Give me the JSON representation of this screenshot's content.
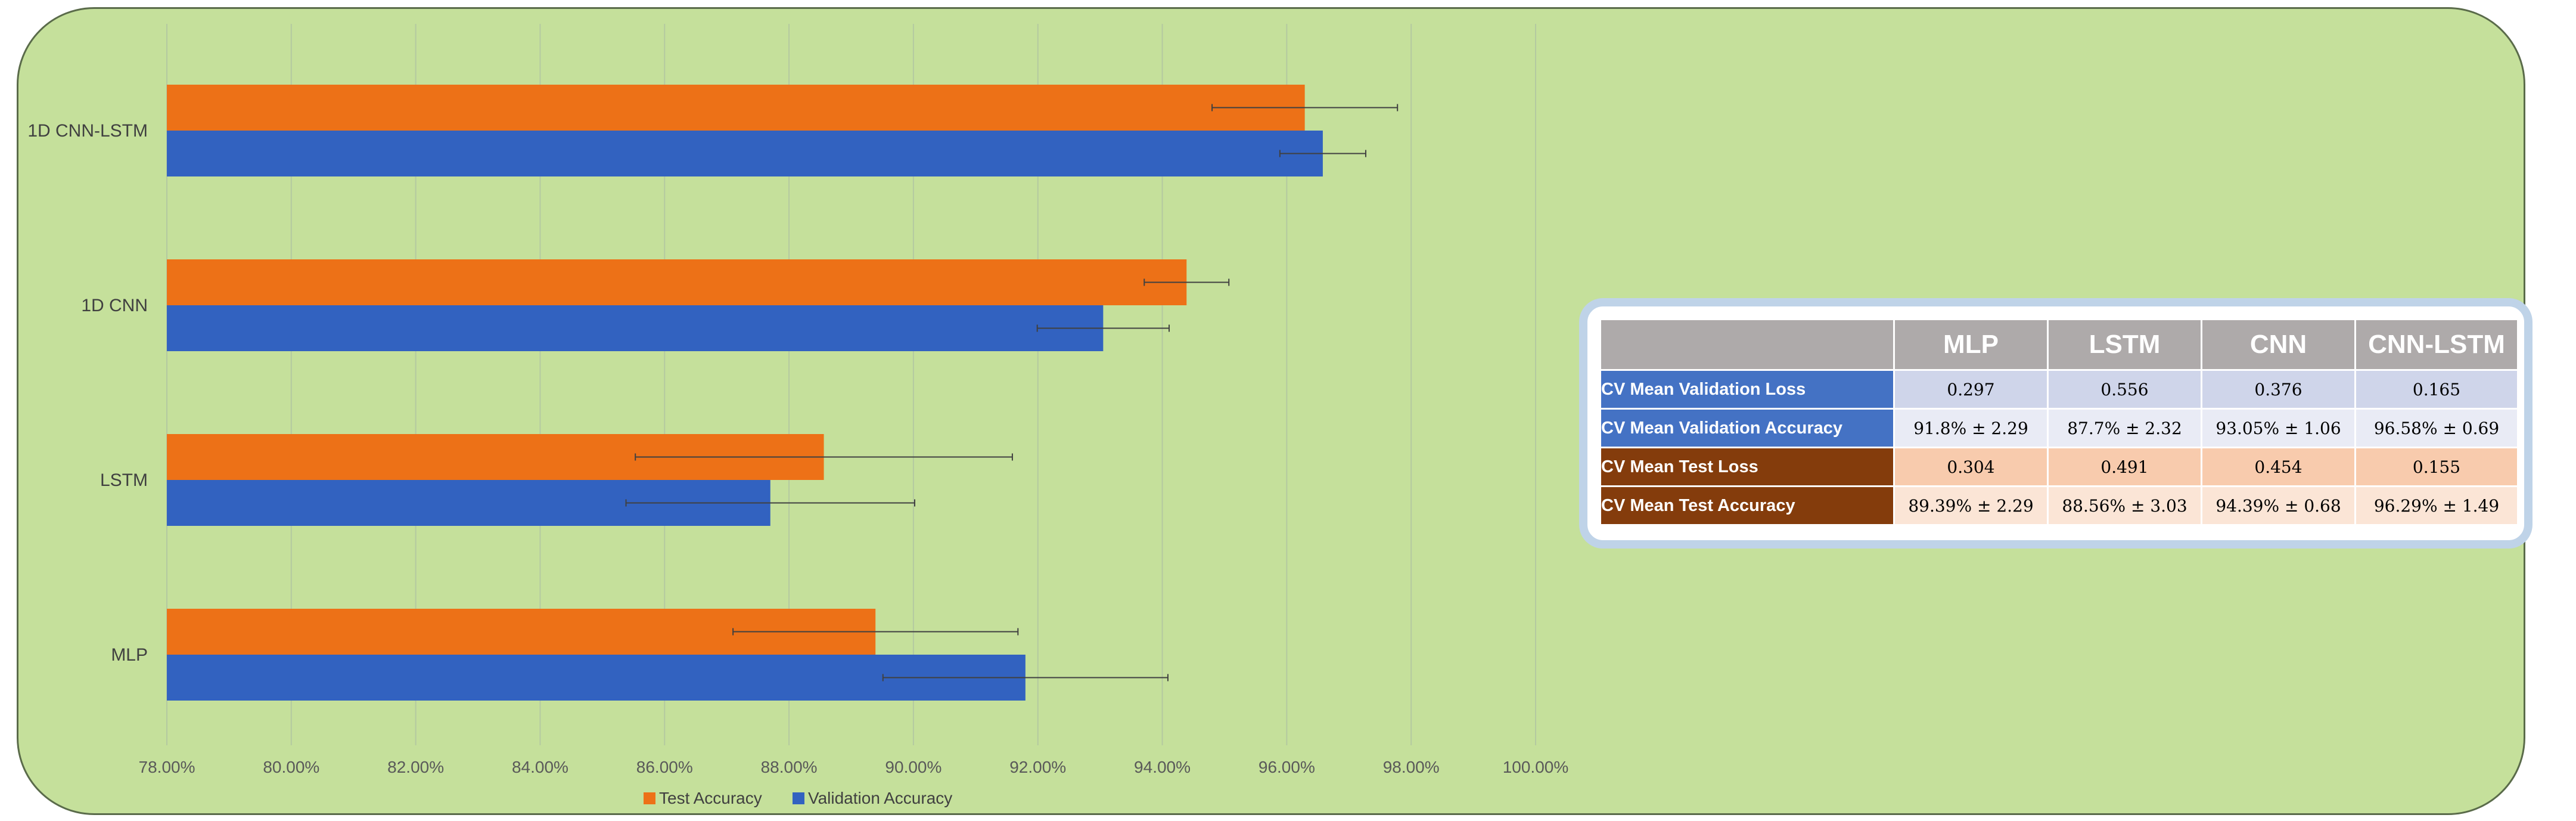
{
  "chart_data": {
    "type": "bar",
    "orientation": "horizontal",
    "categories": [
      "MLP",
      "LSTM",
      "1D CNN",
      "1D CNN-LSTM"
    ],
    "series": [
      {
        "name": "Test Accuracy",
        "color": "#ed7117",
        "values": [
          89.39,
          88.56,
          94.39,
          96.29
        ],
        "errors": [
          2.29,
          3.03,
          0.68,
          1.49
        ]
      },
      {
        "name": "Validation Accuracy",
        "color": "#3262c0",
        "values": [
          91.8,
          87.7,
          93.05,
          96.58
        ],
        "errors": [
          2.29,
          2.32,
          1.06,
          0.69
        ]
      }
    ],
    "xlim": [
      78,
      100
    ],
    "xticks": [
      "78.00%",
      "80.00%",
      "82.00%",
      "84.00%",
      "86.00%",
      "88.00%",
      "90.00%",
      "92.00%",
      "94.00%",
      "96.00%",
      "98.00%",
      "100.00%"
    ],
    "grid": true,
    "legend_position": "bottom"
  },
  "table": {
    "headers": [
      "",
      "MLP",
      "LSTM",
      "CNN",
      "CNN-LSTM"
    ],
    "rows": [
      {
        "label": "CV Mean Validation Loss",
        "values": [
          "0.297",
          "0.556",
          "0.376",
          "0.165"
        ]
      },
      {
        "label": "CV Mean Validation Accuracy",
        "values": [
          "91.8% ± 2.29",
          "87.7% ± 2.32",
          "93.05% ± 1.06",
          "96.58% ± 0.69"
        ]
      },
      {
        "label": "CV Mean Test Loss",
        "values": [
          "0.304",
          "0.491",
          "0.454",
          "0.155"
        ]
      },
      {
        "label": "CV Mean Test Accuracy",
        "values": [
          "89.39% ± 2.29",
          "88.56% ± 3.03",
          "94.39% ± 0.68",
          "96.29% ± 1.49"
        ]
      }
    ]
  }
}
